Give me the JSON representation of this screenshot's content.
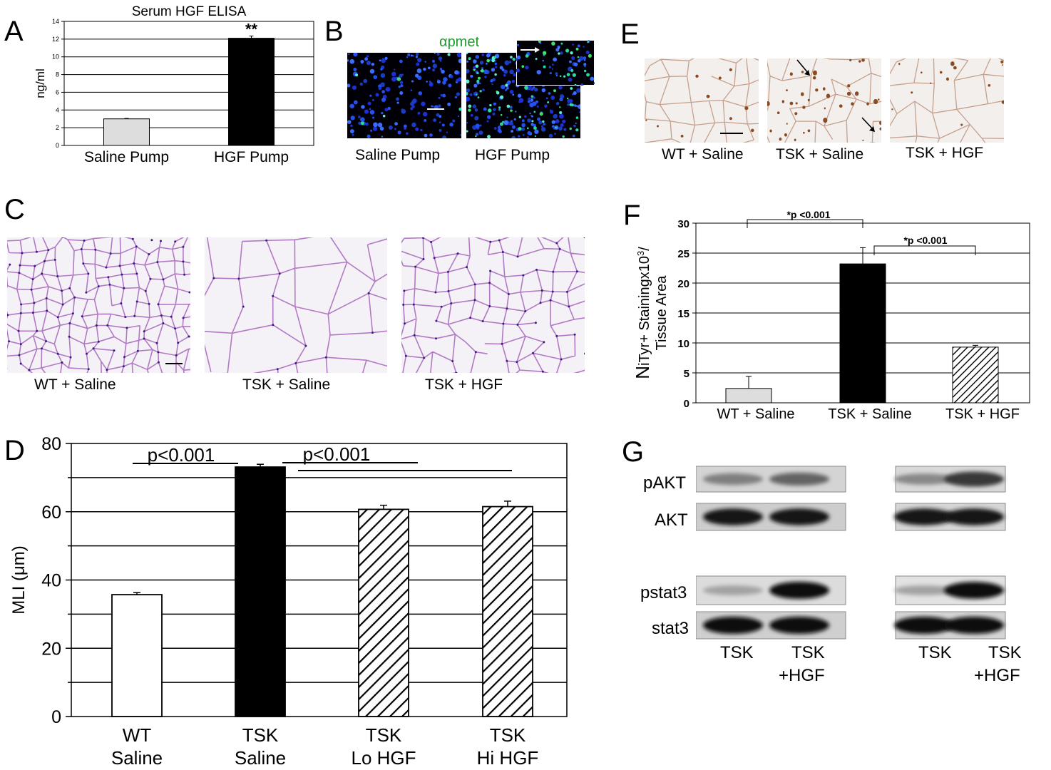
{
  "panels": {
    "A": {
      "letter": "A",
      "chart_data": {
        "type": "bar",
        "title": "Serum HGF ELISA",
        "ylabel": "ng/ml",
        "ylim": [
          0,
          14
        ],
        "yticks": [
          0,
          2,
          4,
          6,
          8,
          10,
          12,
          14
        ],
        "categories": [
          "Saline Pump",
          "HGF Pump"
        ],
        "values": [
          3.0,
          12.1
        ],
        "errors": [
          0.05,
          0.25
        ],
        "colors": [
          "#dddddd",
          "#000000"
        ],
        "annotation": "**",
        "grid": true
      }
    },
    "B": {
      "letter": "B",
      "stain_label": "αpmet",
      "captions": [
        "Saline Pump",
        "HGF Pump"
      ]
    },
    "C": {
      "letter": "C",
      "captions": [
        "WT + Saline",
        "TSK + Saline",
        "TSK + HGF"
      ]
    },
    "D": {
      "letter": "D",
      "chart_data": {
        "type": "bar",
        "ylabel": "MLI (μm)",
        "ylim": [
          0,
          80
        ],
        "yticks": [
          0,
          20,
          40,
          60,
          80
        ],
        "categories": [
          [
            "WT",
            "Saline"
          ],
          [
            "TSK",
            "Saline"
          ],
          [
            "TSK",
            "Lo HGF"
          ],
          [
            "TSK",
            "Hi HGF"
          ]
        ],
        "values": [
          35.7,
          73.1,
          60.7,
          61.5
        ],
        "errors": [
          0.6,
          0.8,
          1.2,
          1.6
        ],
        "fills": [
          "white",
          "black",
          "hatch",
          "hatch"
        ],
        "grid": true,
        "annotations": [
          "p<0.001",
          "p<0.001"
        ]
      }
    },
    "E": {
      "letter": "E",
      "captions": [
        "WT + Saline",
        "TSK + Saline",
        "TSK + HGF"
      ]
    },
    "F": {
      "letter": "F",
      "chart_data": {
        "type": "bar",
        "ylabel_line1": "Staining",
        "ylabel_line2": "Tissue Area",
        "ylabel_prefix": "NiTyr+ ",
        "ylabel_suffix": "x10",
        "ylabel_exp": "3",
        "ylabel_slash": "/",
        "ylim": [
          0,
          30
        ],
        "yticks": [
          0,
          5,
          10,
          15,
          20,
          25,
          30
        ],
        "categories": [
          "WT + Saline",
          "TSK + Saline",
          "TSK + HGF"
        ],
        "values": [
          2.4,
          23.2,
          9.3
        ],
        "errors": [
          2.0,
          2.7,
          0.3
        ],
        "fills": [
          "#dddddd",
          "#000000",
          "hatch"
        ],
        "grid": true,
        "annotations": [
          "*p <0.001",
          "*p <0.001"
        ]
      }
    },
    "G": {
      "letter": "G",
      "rows": [
        "pAKT",
        "AKT",
        "pstat3",
        "stat3"
      ],
      "lanes_left": [
        "TSK",
        "TSK\n+HGF"
      ],
      "lane_labels": [
        "TSK",
        "TSK",
        "+HGF",
        "TSK",
        "TSK",
        "+HGF"
      ]
    }
  }
}
